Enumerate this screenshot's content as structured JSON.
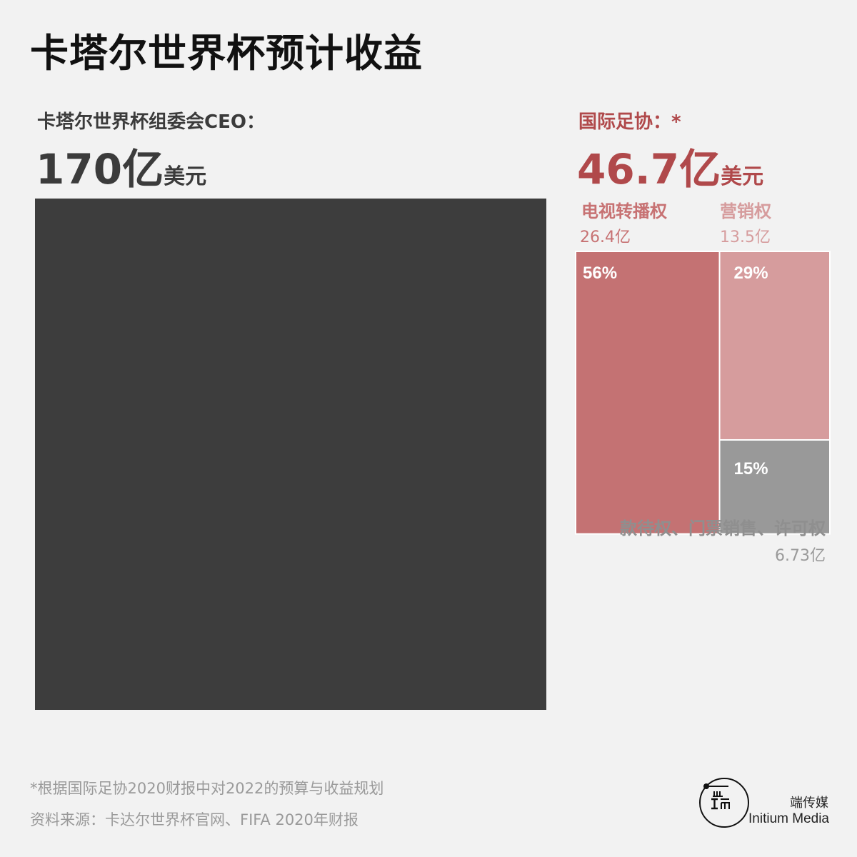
{
  "title": "卡塔尔世界杯预计收益",
  "ceo": {
    "label": "卡塔尔世界杯组委会CEO：",
    "amount": "170亿",
    "unit": "美元"
  },
  "fifa": {
    "label": "国际足协：*",
    "amount": "46.7亿",
    "unit": "美元"
  },
  "chart_data": {
    "type": "treemap",
    "ceo_total": 170,
    "fifa_total": 46.7,
    "unit": "亿美元",
    "categories": [
      {
        "name": "电视转播权",
        "amount_label": "26.4亿",
        "value": 26.4,
        "percent_label": "56%",
        "color": "#c47273"
      },
      {
        "name": "营销权",
        "amount_label": "13.5亿",
        "value": 13.5,
        "percent_label": "29%",
        "color": "#d69c9d"
      },
      {
        "name": "款待权、门票销售、许可权",
        "amount_label": "6.73亿",
        "value": 6.73,
        "percent_label": "15%",
        "color": "#999999"
      }
    ],
    "ceo_color": "#3d3d3d"
  },
  "footer": {
    "note": "*根据国际足协2020财报中对2022的预算与收益规划",
    "source": "资料来源：卡达尔世界杯官网、FIFA 2020年财报"
  },
  "logo": {
    "cn": "端传媒",
    "en": "Initium Media",
    "icon": "initium-logo-icon"
  }
}
